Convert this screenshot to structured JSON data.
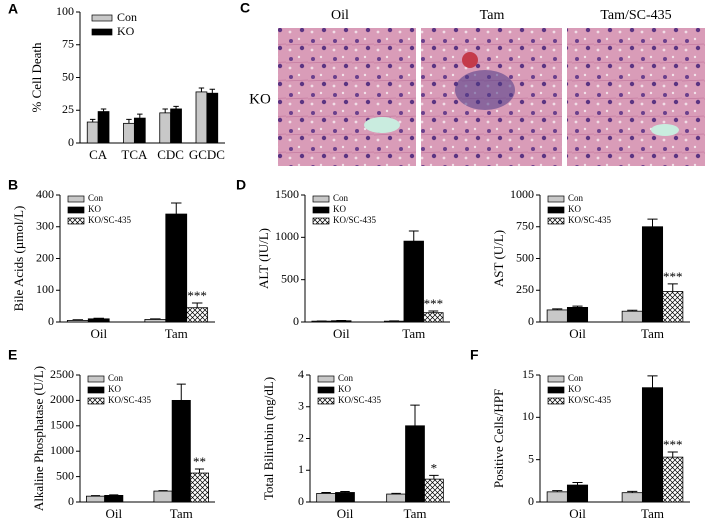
{
  "micrograph": {
    "panel": "C",
    "columns": [
      "Oil",
      "Tam",
      "Tam/SC-435"
    ],
    "row": "KO"
  },
  "chart_data": [
    {
      "type": "bar",
      "panel": "A",
      "ylabel": "% Cell Death",
      "categories": [
        "CA",
        "TCA",
        "CDC",
        "GCDC"
      ],
      "series": [
        {
          "name": "Con",
          "color": "#c8c8c8",
          "values": [
            16,
            15,
            23,
            39
          ],
          "errors": [
            2,
            3,
            3,
            3
          ]
        },
        {
          "name": "KO",
          "color": "#000000",
          "values": [
            24,
            19,
            26,
            38
          ],
          "errors": [
            2,
            3,
            2,
            3
          ]
        }
      ],
      "ylim": [
        0,
        100
      ],
      "yticks": [
        0,
        25,
        50,
        75,
        100
      ],
      "legend": "upper-left"
    },
    {
      "type": "bar",
      "panel": "B",
      "ylabel": "Bile Acids (µmol/L)",
      "categories": [
        "Oil",
        "Tam"
      ],
      "series": [
        {
          "name": "Con",
          "color": "#c8c8c8",
          "values": [
            5,
            8
          ],
          "errors": [
            2,
            2
          ]
        },
        {
          "name": "KO",
          "color": "#000000",
          "values": [
            10,
            340
          ],
          "errors": [
            2,
            35
          ]
        },
        {
          "name": "KO/SC-435",
          "color": "#ffffff",
          "pattern": "crosshatch",
          "values": [
            null,
            45
          ],
          "errors": [
            null,
            15
          ]
        }
      ],
      "annotations": [
        "***"
      ],
      "ylim": [
        0,
        400
      ],
      "yticks": [
        0,
        100,
        200,
        300,
        400
      ],
      "legend": "upper-left"
    },
    {
      "type": "bar",
      "panel": "D",
      "ylabel": "ALT (IU/L)",
      "categories": [
        "Oil",
        "Tam"
      ],
      "series": [
        {
          "name": "Con",
          "color": "#c8c8c8",
          "values": [
            10,
            10
          ],
          "errors": [
            2,
            3
          ]
        },
        {
          "name": "KO",
          "color": "#000000",
          "values": [
            15,
            955
          ],
          "errors": [
            3,
            120
          ]
        },
        {
          "name": "KO/SC-435",
          "color": "#ffffff",
          "pattern": "crosshatch",
          "values": [
            null,
            110
          ],
          "errors": [
            null,
            20
          ]
        }
      ],
      "annotations": [
        "***"
      ],
      "ylim": [
        0,
        1500
      ],
      "yticks": [
        0,
        500,
        1000,
        1500
      ],
      "legend": "upper-left"
    },
    {
      "type": "bar",
      "ylabel": "AST (U/L)",
      "categories": [
        "Oil",
        "Tam"
      ],
      "series": [
        {
          "name": "Con",
          "color": "#c8c8c8",
          "values": [
            95,
            85
          ],
          "errors": [
            8,
            8
          ]
        },
        {
          "name": "KO",
          "color": "#000000",
          "values": [
            115,
            750
          ],
          "errors": [
            10,
            60
          ]
        },
        {
          "name": "KO/SC-435",
          "color": "#ffffff",
          "pattern": "crosshatch",
          "values": [
            null,
            240
          ],
          "errors": [
            null,
            60
          ]
        }
      ],
      "annotations": [
        "***"
      ],
      "ylim": [
        0,
        1000
      ],
      "yticks": [
        0,
        250,
        500,
        750,
        1000
      ],
      "legend": "upper-left"
    },
    {
      "type": "bar",
      "panel": "E",
      "ylabel": "Alkaline Phosphatase (U/L)",
      "categories": [
        "Oil",
        "Tam"
      ],
      "series": [
        {
          "name": "Con",
          "color": "#c8c8c8",
          "values": [
            115,
            215
          ],
          "errors": [
            10,
            10
          ]
        },
        {
          "name": "KO",
          "color": "#000000",
          "values": [
            130,
            2000
          ],
          "errors": [
            10,
            320
          ]
        },
        {
          "name": "KO/SC-435",
          "color": "#ffffff",
          "pattern": "crosshatch",
          "values": [
            null,
            570
          ],
          "errors": [
            null,
            80
          ]
        }
      ],
      "annotations": [
        "**"
      ],
      "ylim": [
        0,
        2500
      ],
      "yticks": [
        0,
        500,
        1000,
        1500,
        2000,
        2500
      ],
      "legend": "upper-left"
    },
    {
      "type": "bar",
      "ylabel": "Total Bilirubin (mg/dL)",
      "categories": [
        "Oil",
        "Tam"
      ],
      "series": [
        {
          "name": "Con",
          "color": "#c8c8c8",
          "values": [
            0.27,
            0.25
          ],
          "errors": [
            0.03,
            0.02
          ]
        },
        {
          "name": "KO",
          "color": "#000000",
          "values": [
            0.3,
            2.4
          ],
          "errors": [
            0.03,
            0.65
          ]
        },
        {
          "name": "KO/SC-435",
          "color": "#ffffff",
          "pattern": "crosshatch",
          "values": [
            null,
            0.72
          ],
          "errors": [
            null,
            0.12
          ]
        }
      ],
      "annotations": [
        "*"
      ],
      "ylim": [
        0,
        4
      ],
      "yticks": [
        0,
        1,
        2,
        3,
        4
      ],
      "legend": "upper-left"
    },
    {
      "type": "bar",
      "panel": "F",
      "ylabel": "Positive Cells/HPF",
      "categories": [
        "Oil",
        "Tam"
      ],
      "series": [
        {
          "name": "Con",
          "color": "#c8c8c8",
          "values": [
            1.2,
            1.1
          ],
          "errors": [
            0.15,
            0.15
          ]
        },
        {
          "name": "KO",
          "color": "#000000",
          "values": [
            2.0,
            13.5
          ],
          "errors": [
            0.3,
            1.4
          ]
        },
        {
          "name": "KO/SC-435",
          "color": "#ffffff",
          "pattern": "crosshatch",
          "values": [
            null,
            5.3
          ],
          "errors": [
            null,
            0.6
          ]
        }
      ],
      "annotations": [
        "***"
      ],
      "ylim": [
        0,
        15
      ],
      "yticks": [
        0,
        5,
        10,
        15
      ],
      "legend": "upper-left"
    }
  ]
}
